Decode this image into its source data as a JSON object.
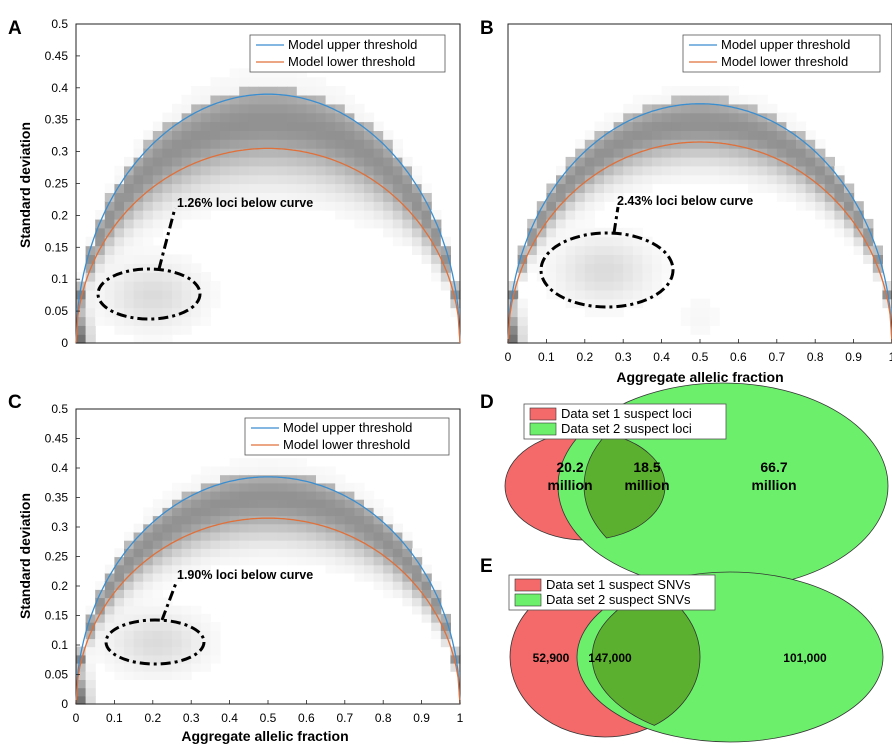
{
  "panels": {
    "A": {
      "label": "A",
      "ylabel": "Standard deviation",
      "annotation": "1.26% loci below curve"
    },
    "B": {
      "label": "B",
      "xlabel": "Aggregate allelic fraction",
      "annotation": "2.43% loci below curve"
    },
    "C": {
      "label": "C",
      "ylabel": "Standard deviation",
      "xlabel": "Aggregate allelic fraction",
      "annotation": "1.90% loci below curve"
    },
    "D": {
      "label": "D",
      "legend": [
        "Data set 1 suspect loci",
        "Data set 2 suspect loci"
      ],
      "left_only": [
        "20.2",
        "million"
      ],
      "overlap": [
        "18.5",
        "million"
      ],
      "right_only": [
        "66.7",
        "million"
      ]
    },
    "E": {
      "label": "E",
      "legend": [
        "Data set 1 suspect SNVs",
        "Data set 2 suspect SNVs"
      ],
      "left_only": "52,900",
      "overlap": "147,000",
      "right_only": "101,000"
    }
  },
  "legend_labels": [
    "Model upper threshold",
    "Model lower threshold"
  ],
  "colors": {
    "upper": "#3a8ed0",
    "lower": "#e0703a",
    "set1": "#f46a6a",
    "set2": "#6cf06c",
    "overlap": "#5bb02f"
  },
  "chart_data": [
    {
      "panel": "A",
      "type": "heatmap",
      "xlabel": "",
      "ylabel": "Standard deviation",
      "xlim": [
        0,
        1
      ],
      "ylim": [
        0,
        0.5
      ],
      "yticks": [
        "0",
        "0.05",
        "0.1",
        "0.15",
        "0.2",
        "0.25",
        "0.3",
        "0.35",
        "0.4",
        "0.45",
        "0.5"
      ],
      "xticks": [],
      "series": [
        {
          "name": "Model upper threshold",
          "peak": [
            0.5,
            0.39
          ]
        },
        {
          "name": "Model lower threshold",
          "peak": [
            0.5,
            0.305
          ]
        }
      ],
      "annotation": "1.26% loci below curve",
      "highlight_center": [
        0.2,
        0.075
      ]
    },
    {
      "panel": "B",
      "type": "heatmap",
      "xlabel": "Aggregate allelic fraction",
      "ylabel": "",
      "xlim": [
        0,
        1
      ],
      "ylim": [
        0,
        0.5
      ],
      "xticks": [
        "0",
        "0.1",
        "0.2",
        "0.3",
        "0.4",
        "0.5",
        "0.6",
        "0.7",
        "0.8",
        "0.9",
        "1"
      ],
      "yticks": [],
      "series": [
        {
          "name": "Model upper threshold",
          "peak": [
            0.5,
            0.375
          ]
        },
        {
          "name": "Model lower threshold",
          "peak": [
            0.5,
            0.315
          ]
        }
      ],
      "annotation": "2.43% loci below curve",
      "highlight_center": [
        0.25,
        0.115
      ]
    },
    {
      "panel": "C",
      "type": "heatmap",
      "xlabel": "Aggregate allelic fraction",
      "ylabel": "Standard deviation",
      "xlim": [
        0,
        1
      ],
      "ylim": [
        0,
        0.5
      ],
      "xticks": [
        "0",
        "0.1",
        "0.2",
        "0.3",
        "0.4",
        "0.5",
        "0.6",
        "0.7",
        "0.8",
        "0.9",
        "1"
      ],
      "yticks": [
        "0",
        "0.05",
        "0.1",
        "0.15",
        "0.2",
        "0.25",
        "0.3",
        "0.35",
        "0.4",
        "0.45",
        "0.5"
      ],
      "series": [
        {
          "name": "Model upper threshold",
          "peak": [
            0.5,
            0.385
          ]
        },
        {
          "name": "Model lower threshold",
          "peak": [
            0.5,
            0.315
          ]
        }
      ],
      "annotation": "1.90% loci below curve",
      "highlight_center": [
        0.21,
        0.105
      ]
    },
    {
      "panel": "D",
      "type": "venn",
      "sets": [
        "Data set 1 suspect loci",
        "Data set 2 suspect loci"
      ],
      "values_million": {
        "set1_only": 20.2,
        "both": 18.5,
        "set2_only": 66.7
      }
    },
    {
      "panel": "E",
      "type": "venn",
      "sets": [
        "Data set 1 suspect SNVs",
        "Data set 2 suspect SNVs"
      ],
      "values": {
        "set1_only": 52900,
        "both": 147000,
        "set2_only": 101000
      }
    }
  ]
}
